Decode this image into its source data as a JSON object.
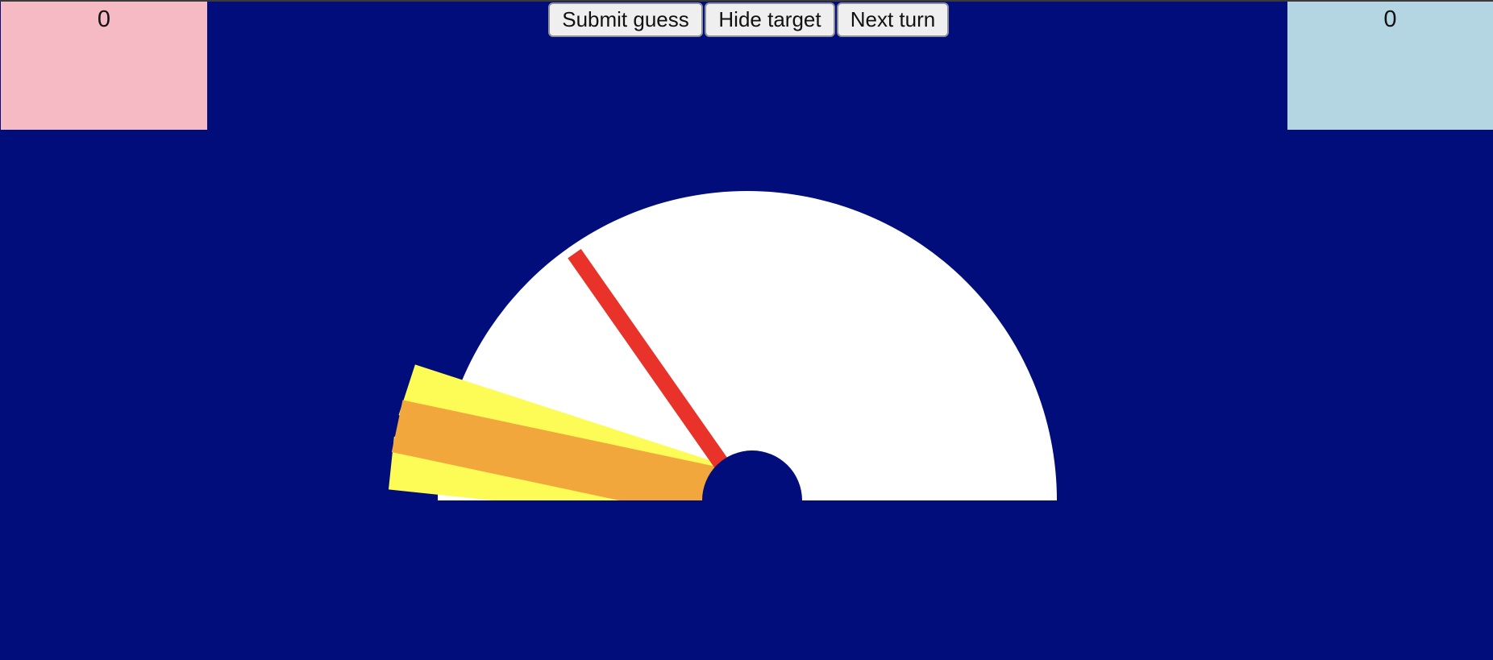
{
  "scores": {
    "left_team": "0",
    "right_team": "0"
  },
  "controls": {
    "submit_label": "Submit guess",
    "hide_label": "Hide target",
    "next_label": "Next turn"
  },
  "colors": {
    "background": "#000d7a",
    "dial": "#ffffff",
    "target_outer": "#fdfb55",
    "target_center": "#f2a73d",
    "needle": "#e8322a",
    "left_team": "#f6bac4",
    "right_team": "#b4d6e2"
  },
  "dial": {
    "target_angle_deg": 168,
    "guess_angle_deg": 125
  }
}
